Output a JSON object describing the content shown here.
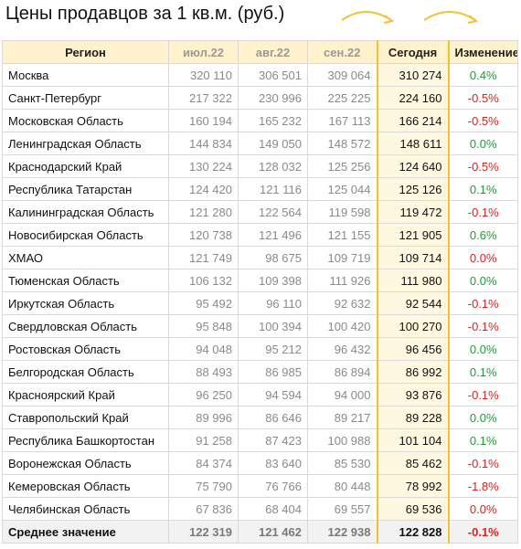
{
  "title": "Цены продавцов за 1 кв.м. (руб.)",
  "colors": {
    "header_bg": "#fff2cc",
    "today_border": "#f1c232",
    "positive": "#1a9e34",
    "negative": "#e0201f",
    "arrow": "#f1c232"
  },
  "headers": {
    "region": "Регион",
    "jul": "июл.22",
    "aug": "авг.22",
    "sep": "сен.22",
    "today": "Сегодня",
    "change": "Изменение"
  },
  "rows": [
    {
      "region": "Москва",
      "jul": "320 110",
      "aug": "306 501",
      "sep": "309 064",
      "today": "310 274",
      "change": "0.4%",
      "trend": "positive"
    },
    {
      "region": "Санкт-Петербург",
      "jul": "217 322",
      "aug": "230 996",
      "sep": "225 225",
      "today": "224 160",
      "change": "-0.5%",
      "trend": "negative"
    },
    {
      "region": "Московская Область",
      "jul": "160 194",
      "aug": "165 232",
      "sep": "167 113",
      "today": "166 214",
      "change": "-0.5%",
      "trend": "negative"
    },
    {
      "region": "Ленинградская Область",
      "jul": "144 834",
      "aug": "149 050",
      "sep": "148 572",
      "today": "148 611",
      "change": "0.0%",
      "trend": "positive"
    },
    {
      "region": "Краснодарский Край",
      "jul": "130 224",
      "aug": "128 032",
      "sep": "125 256",
      "today": "124 640",
      "change": "-0.5%",
      "trend": "negative"
    },
    {
      "region": "Республика Татарстан",
      "jul": "124 420",
      "aug": "121 116",
      "sep": "125 044",
      "today": "125 126",
      "change": "0.1%",
      "trend": "positive"
    },
    {
      "region": "Калининградская Область",
      "jul": "121 280",
      "aug": "122 564",
      "sep": "119 598",
      "today": "119 472",
      "change": "-0.1%",
      "trend": "negative"
    },
    {
      "region": "Новосибирская Область",
      "jul": "120 738",
      "aug": "121 496",
      "sep": "121 155",
      "today": "121 905",
      "change": "0.6%",
      "trend": "positive"
    },
    {
      "region": "ХМАО",
      "jul": "121 749",
      "aug": "98 675",
      "sep": "109 719",
      "today": "109 714",
      "change": "0.0%",
      "trend": "negative"
    },
    {
      "region": "Тюменская Область",
      "jul": "106 132",
      "aug": "109 398",
      "sep": "111 926",
      "today": "111 980",
      "change": "0.0%",
      "trend": "positive"
    },
    {
      "region": "Иркутская Область",
      "jul": "95 492",
      "aug": "96 110",
      "sep": "92 632",
      "today": "92 544",
      "change": "-0.1%",
      "trend": "negative"
    },
    {
      "region": "Свердловская Область",
      "jul": "95 848",
      "aug": "100 394",
      "sep": "100 420",
      "today": "100 270",
      "change": "-0.1%",
      "trend": "negative"
    },
    {
      "region": "Ростовская Область",
      "jul": "94 048",
      "aug": "95 212",
      "sep": "96 432",
      "today": "96 456",
      "change": "0.0%",
      "trend": "positive"
    },
    {
      "region": "Белгородская Область",
      "jul": "88 493",
      "aug": "86 985",
      "sep": "86 894",
      "today": "86 992",
      "change": "0.1%",
      "trend": "positive"
    },
    {
      "region": "Красноярский Край",
      "jul": "96 250",
      "aug": "94 594",
      "sep": "94 000",
      "today": "93 876",
      "change": "-0.1%",
      "trend": "negative"
    },
    {
      "region": "Ставропольский Край",
      "jul": "89 996",
      "aug": "86 646",
      "sep": "89 217",
      "today": "89 228",
      "change": "0.0%",
      "trend": "positive"
    },
    {
      "region": "Республика Башкортостан",
      "jul": "91 258",
      "aug": "87 423",
      "sep": "100 988",
      "today": "101 104",
      "change": "0.1%",
      "trend": "positive"
    },
    {
      "region": "Воронежская Область",
      "jul": "84 374",
      "aug": "83 640",
      "sep": "85 530",
      "today": "85 462",
      "change": "-0.1%",
      "trend": "negative"
    },
    {
      "region": "Кемеровская Область",
      "jul": "75 790",
      "aug": "76 766",
      "sep": "80 448",
      "today": "78 992",
      "change": "-1.8%",
      "trend": "negative"
    },
    {
      "region": "Челябинская Область",
      "jul": "67 836",
      "aug": "68 404",
      "sep": "69 557",
      "today": "69 536",
      "change": "0.0%",
      "trend": "negative"
    }
  ],
  "total": {
    "region": "Среднее значение",
    "jul": "122 319",
    "aug": "121 462",
    "sep": "122 938",
    "today": "122 828",
    "change": "-0.1%",
    "trend": "negative"
  }
}
